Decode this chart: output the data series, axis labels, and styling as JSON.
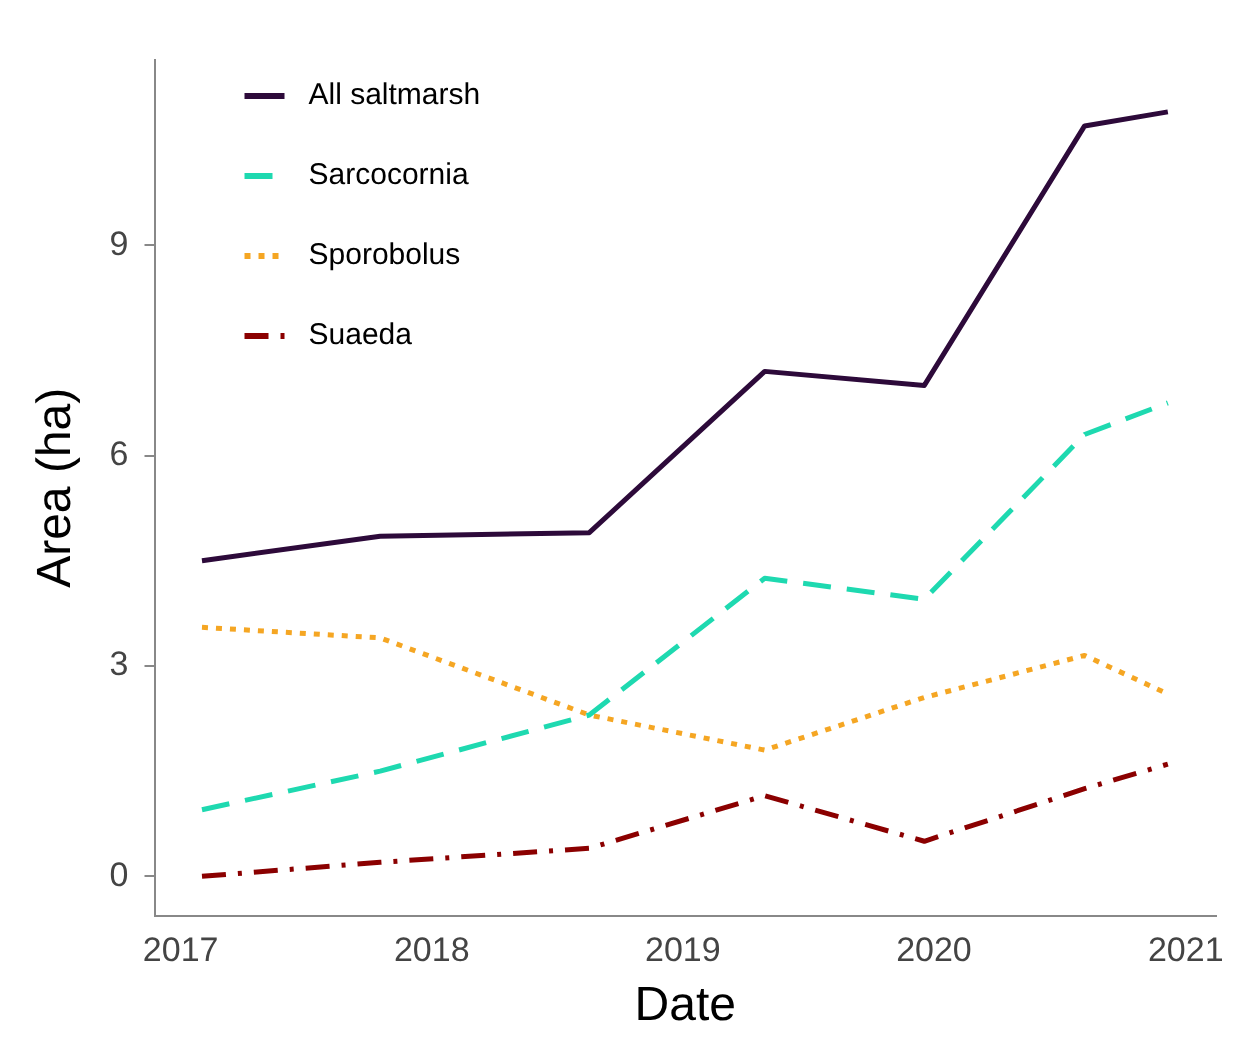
{
  "chart_data": {
    "type": "line",
    "xlabel": "Date",
    "ylabel": "Area (ha)",
    "x": [
      "2017-02-01",
      "2017-10-18",
      "2018-08-18",
      "2019-04-30",
      "2019-12-18",
      "2020-08-07",
      "2020-12-06"
    ],
    "series": [
      {
        "name": "All saltmarsh",
        "color": "#2d0a3a",
        "line_style": "solid",
        "values": [
          4.5,
          4.85,
          4.9,
          7.2,
          7.0,
          10.7,
          10.9
        ]
      },
      {
        "name": "Sarcocornia",
        "color": "#1ed9b0",
        "line_style": "dashed",
        "values": [
          0.95,
          1.5,
          2.3,
          4.25,
          3.95,
          6.3,
          6.75
        ]
      },
      {
        "name": "Sporobolus",
        "color": "#f5a623",
        "line_style": "dotted",
        "values": [
          3.55,
          3.4,
          2.3,
          1.8,
          2.55,
          3.15,
          2.6
        ]
      },
      {
        "name": "Suaeda",
        "color": "#8b0000",
        "line_style": "dashdot",
        "values": [
          0,
          0.2,
          0.4,
          1.15,
          0.5,
          1.25,
          1.6
        ]
      }
    ],
    "xlim": [
      "2016-11-24",
      "2021-02-14"
    ],
    "xticks": [
      "2017",
      "2018",
      "2019",
      "2020",
      "2021"
    ],
    "ylim": [
      -0.56,
      11.64
    ],
    "yticks": [
      0,
      3,
      6,
      9
    ],
    "grid": false,
    "legend": "top left",
    "marker": "none"
  }
}
